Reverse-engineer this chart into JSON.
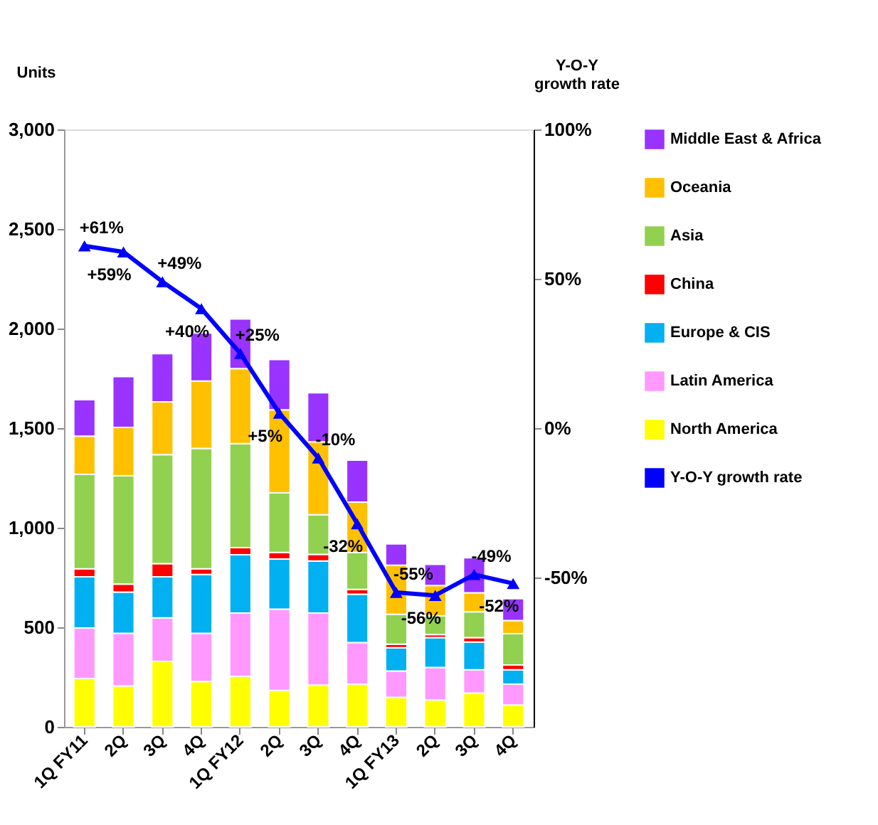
{
  "chart_data": {
    "type": "bar",
    "stacked": true,
    "ylabel": "Units",
    "y2label": "Y-O-Y growth rate",
    "categories": [
      "1Q FY11",
      "2Q",
      "3Q",
      "4Q",
      "1Q FY12",
      "2Q",
      "3Q",
      "4Q",
      "1Q FY13",
      "2Q",
      "3Q",
      "4Q"
    ],
    "series": [
      {
        "name": "North America",
        "color": "#ffff00",
        "values": [
          243,
          205,
          329,
          228,
          254,
          183,
          210,
          214,
          148,
          135,
          170,
          110
        ]
      },
      {
        "name": "Latin America",
        "color": "#ff99ff",
        "values": [
          253,
          265,
          218,
          242,
          317,
          408,
          361,
          209,
          132,
          163,
          117,
          104
        ]
      },
      {
        "name": "Europe & CIS",
        "color": "#00b0f0",
        "values": [
          258,
          207,
          207,
          295,
          293,
          252,
          262,
          243,
          117,
          150,
          139,
          73
        ]
      },
      {
        "name": "China",
        "color": "#ff0000",
        "values": [
          40,
          40,
          66,
          29,
          36,
          33,
          33,
          24,
          18,
          15,
          22,
          24
        ]
      },
      {
        "name": "Asia",
        "color": "#92d050",
        "values": [
          474,
          544,
          547,
          604,
          522,
          299,
          199,
          186,
          150,
          95,
          130,
          157
        ]
      },
      {
        "name": "Oceania",
        "color": "#ffc000",
        "values": [
          192,
          243,
          265,
          339,
          377,
          417,
          366,
          253,
          247,
          152,
          95,
          66
        ]
      },
      {
        "name": "Middle East & Africa",
        "color": "#9933ff",
        "values": [
          183,
          255,
          242,
          241,
          249,
          253,
          247,
          210,
          107,
          106,
          176,
          110
        ]
      },
      {
        "name": "Y-O-Y growth rate",
        "type": "line",
        "axis": "y2",
        "color": "#0000ff",
        "marker": "triangle",
        "line_style": "solid",
        "values": [
          61,
          59,
          49,
          40,
          25,
          5,
          -10,
          -32,
          -55,
          -56,
          -49,
          -52
        ],
        "value_labels": [
          "+61%",
          "+59%",
          "+49%",
          "+40%",
          "+25%",
          "+5%",
          "-10%",
          "-32%",
          "-55%",
          "-56%",
          "-49%",
          "-52%"
        ]
      }
    ],
    "ylim": [
      0,
      3000
    ],
    "yticks": [
      0,
      500,
      {
        "value": 1000,
        "label": "1,000"
      },
      {
        "value": 1500,
        "label": "1,500"
      },
      {
        "value": 2000,
        "label": "2,000"
      },
      {
        "value": 2500,
        "label": "2,500"
      },
      {
        "value": 3000,
        "label": "3,000"
      }
    ],
    "y2lim": [
      -100,
      100
    ],
    "y2ticks": [
      {
        "value": 100,
        "label": "100%"
      },
      {
        "value": 50,
        "label": "50%"
      },
      {
        "value": 0,
        "label": "0%"
      },
      {
        "value": -50,
        "label": "-50%"
      }
    ],
    "grid": false,
    "legend": "right"
  }
}
